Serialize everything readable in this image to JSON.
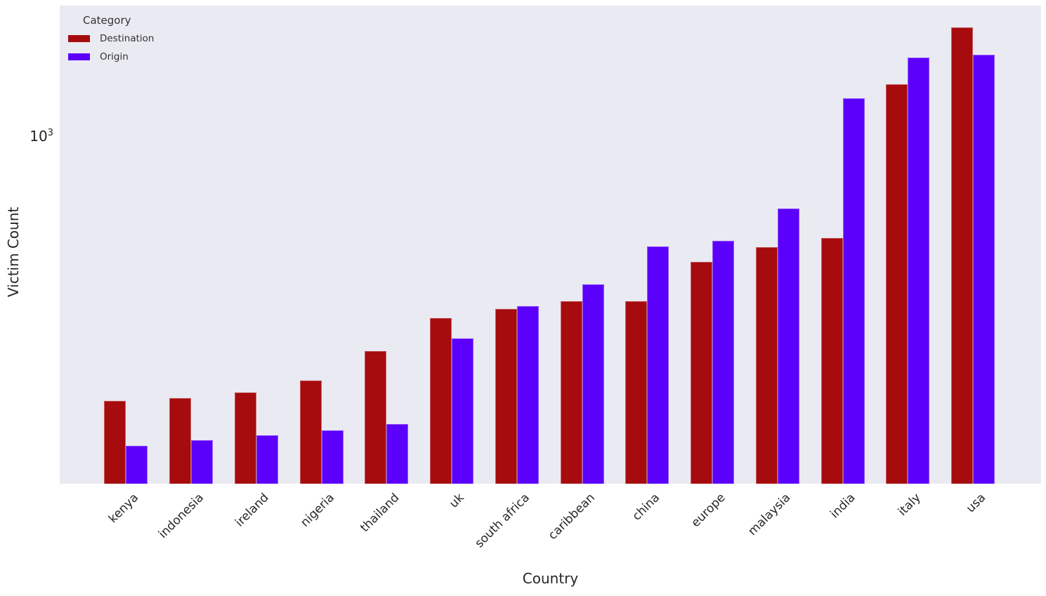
{
  "chart_data": {
    "type": "bar",
    "title": "",
    "xlabel": "Country",
    "ylabel": "Victim Count",
    "yscale": "log",
    "ylim": [
      103,
      2370
    ],
    "y_tick": {
      "mantissa": "10",
      "exponent": "3"
    },
    "grid": false,
    "legend_position": "upper left",
    "legend_title": "Category",
    "categories": [
      "kenya",
      "indonesia",
      "ireland",
      "nigeria",
      "thailand",
      "uk",
      "south africa",
      "caribbean",
      "china",
      "europe",
      "malaysia",
      "india",
      "italy",
      "usa"
    ],
    "series": [
      {
        "name": "Destination",
        "color": "#a60b0e",
        "values": [
          177,
          180,
          187,
          202,
          245,
          305,
          324,
          340,
          341,
          441,
          486,
          515,
          1413,
          2048
        ]
      },
      {
        "name": "Origin",
        "color": "#5b01fb",
        "values": [
          132,
          137,
          141,
          146,
          152,
          267,
          330,
          381,
          488,
          505,
          624,
          1288,
          1683,
          1716
        ]
      }
    ],
    "colors": {
      "plot_background": "#eaeaf2",
      "figure_background": "#ffffff",
      "text": "#262626"
    }
  }
}
